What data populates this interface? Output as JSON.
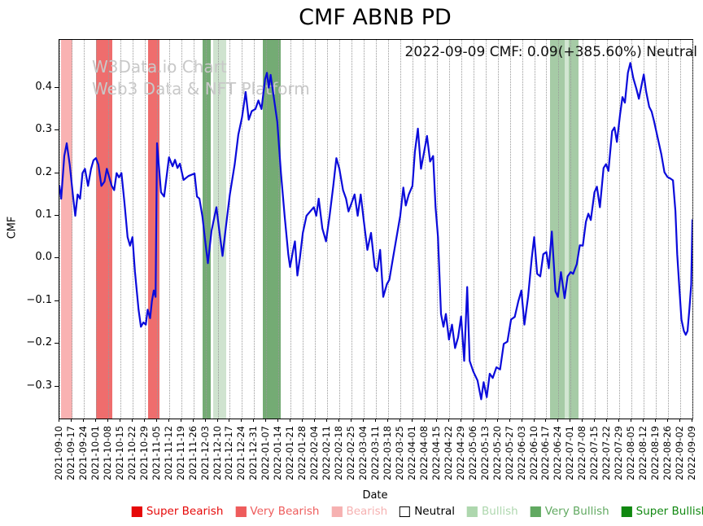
{
  "title": "CMF ABNB PD",
  "annotation": "2022-09-09 CMF: 0.09(+385.60%) Neutral",
  "watermark": {
    "line1": "W3Data.io Chart",
    "line2": "Web3 Data & NFT Platform"
  },
  "legend": [
    {
      "label": "Super Bearish",
      "swatch_color": "#e60909",
      "text_color": "#e60909",
      "swatch_border": "#e60909"
    },
    {
      "label": "Very Bearish",
      "swatch_color": "#ee5c5c",
      "text_color": "#ee5c5c",
      "swatch_border": "#ee5c5c"
    },
    {
      "label": "Bearish",
      "swatch_color": "#f6b1b1",
      "text_color": "#f6b1b1",
      "swatch_border": "#f6b1b1"
    },
    {
      "label": "Neutral",
      "swatch_color": "#ffffff",
      "text_color": "#000000",
      "swatch_border": "#000000"
    },
    {
      "label": "Bullish",
      "swatch_color": "#aed7ae",
      "text_color": "#aed7ae",
      "swatch_border": "#aed7ae"
    },
    {
      "label": "Very Bullish",
      "swatch_color": "#61a961",
      "text_color": "#61a961",
      "swatch_border": "#61a961"
    },
    {
      "label": "Super Bullish",
      "swatch_color": "#108810",
      "text_color": "#108810",
      "swatch_border": "#108810"
    }
  ],
  "chart_data": {
    "type": "line",
    "title": "CMF ABNB PD",
    "xlabel": "Date",
    "ylabel": "CMF",
    "ylim": [
      -0.375,
      0.512
    ],
    "grid": "vertical dotted weekly gridlines, no horizontal grid",
    "legend_position": "bottom",
    "y_ticks": [
      {
        "v": 0.4,
        "label": "0.4"
      },
      {
        "v": 0.3,
        "label": "0.3"
      },
      {
        "v": 0.2,
        "label": "0.2"
      },
      {
        "v": 0.1,
        "label": "0.1"
      },
      {
        "v": 0.0,
        "label": "0.0"
      },
      {
        "v": -0.1,
        "label": "−0.1"
      },
      {
        "v": -0.2,
        "label": "−0.2"
      },
      {
        "v": -0.3,
        "label": "−0.3"
      }
    ],
    "x_tick_labels": [
      "2021-09-10",
      "2021-09-17",
      "2021-09-24",
      "2021-10-01",
      "2021-10-08",
      "2021-10-15",
      "2021-10-22",
      "2021-10-29",
      "2021-11-05",
      "2021-11-12",
      "2021-11-19",
      "2021-11-26",
      "2021-12-03",
      "2021-12-10",
      "2021-12-17",
      "2021-12-24",
      "2021-12-31",
      "2022-01-07",
      "2022-01-14",
      "2022-01-21",
      "2022-01-28",
      "2022-02-04",
      "2022-02-11",
      "2022-02-18",
      "2022-02-25",
      "2022-03-04",
      "2022-03-11",
      "2022-03-18",
      "2022-03-25",
      "2022-04-01",
      "2022-04-08",
      "2022-04-15",
      "2022-04-22",
      "2022-04-29",
      "2022-05-06",
      "2022-05-13",
      "2022-05-20",
      "2022-05-27",
      "2022-06-03",
      "2022-06-10",
      "2022-06-17",
      "2022-06-24",
      "2022-07-01",
      "2022-07-08",
      "2022-07-15",
      "2022-07-22",
      "2022-07-29",
      "2022-08-05",
      "2022-08-12",
      "2022-08-19",
      "2022-08-26",
      "2022-09-02",
      "2022-09-09"
    ],
    "bands": [
      {
        "label": "Bearish",
        "from": 0.15,
        "to": 1.05,
        "color": "#f9b2b2"
      },
      {
        "label": "Very Bearish",
        "from": 3.0,
        "to": 4.35,
        "color": "#ef6d6d"
      },
      {
        "label": "Very Bearish",
        "from": 7.3,
        "to": 8.2,
        "color": "#ef6d6d"
      },
      {
        "label": "Very Bullish",
        "from": 11.75,
        "to": 12.45,
        "color": "#74ab74"
      },
      {
        "label": "Bullish",
        "from": 12.65,
        "to": 13.7,
        "color": "#cfe3cf"
      },
      {
        "label": "Very Bullish",
        "from": 16.7,
        "to": 18.15,
        "color": "#74ab74"
      },
      {
        "label": "Bullish",
        "from": 40.3,
        "to": 41.5,
        "color": "#a6cba6"
      },
      {
        "label": "Bullish",
        "from": 41.5,
        "to": 41.85,
        "color": "#d2e6d2"
      },
      {
        "label": "Bullish",
        "from": 41.85,
        "to": 42.65,
        "color": "#a6cba6"
      }
    ],
    "series": [
      {
        "name": "CMF",
        "color": "#0b0bdb",
        "points": [
          [
            0,
            0.17
          ],
          [
            0.15,
            0.14
          ],
          [
            0.4,
            0.24
          ],
          [
            0.6,
            0.27
          ],
          [
            0.85,
            0.22
          ],
          [
            1.1,
            0.15
          ],
          [
            1.3,
            0.1
          ],
          [
            1.5,
            0.15
          ],
          [
            1.7,
            0.14
          ],
          [
            1.9,
            0.2
          ],
          [
            2.1,
            0.21
          ],
          [
            2.35,
            0.17
          ],
          [
            2.6,
            0.21
          ],
          [
            2.8,
            0.23
          ],
          [
            3.0,
            0.235
          ],
          [
            3.2,
            0.22
          ],
          [
            3.45,
            0.17
          ],
          [
            3.7,
            0.18
          ],
          [
            3.9,
            0.21
          ],
          [
            4.1,
            0.19
          ],
          [
            4.3,
            0.17
          ],
          [
            4.5,
            0.16
          ],
          [
            4.7,
            0.2
          ],
          [
            4.9,
            0.19
          ],
          [
            5.1,
            0.2
          ],
          [
            5.35,
            0.13
          ],
          [
            5.6,
            0.05
          ],
          [
            5.8,
            0.03
          ],
          [
            6.0,
            0.05
          ],
          [
            6.2,
            -0.03
          ],
          [
            6.5,
            -0.12
          ],
          [
            6.7,
            -0.16
          ],
          [
            6.9,
            -0.15
          ],
          [
            7.1,
            -0.155
          ],
          [
            7.25,
            -0.12
          ],
          [
            7.45,
            -0.14
          ],
          [
            7.6,
            -0.1
          ],
          [
            7.75,
            -0.075
          ],
          [
            7.9,
            -0.09
          ],
          [
            8.02,
            0.27
          ],
          [
            8.35,
            0.155
          ],
          [
            8.6,
            0.145
          ],
          [
            9.0,
            0.237
          ],
          [
            9.3,
            0.216
          ],
          [
            9.5,
            0.231
          ],
          [
            9.7,
            0.212
          ],
          [
            9.9,
            0.222
          ],
          [
            10.2,
            0.184
          ],
          [
            10.6,
            0.193
          ],
          [
            11.1,
            0.199
          ],
          [
            11.3,
            0.145
          ],
          [
            11.5,
            0.14
          ],
          [
            11.75,
            0.098
          ],
          [
            12.0,
            0.036
          ],
          [
            12.2,
            -0.011
          ],
          [
            12.5,
            0.065
          ],
          [
            12.9,
            0.12
          ],
          [
            13.1,
            0.073
          ],
          [
            13.4,
            0.006
          ],
          [
            13.7,
            0.08
          ],
          [
            14.0,
            0.15
          ],
          [
            14.4,
            0.22
          ],
          [
            14.7,
            0.29
          ],
          [
            15.0,
            0.33
          ],
          [
            15.3,
            0.39
          ],
          [
            15.55,
            0.325
          ],
          [
            15.8,
            0.345
          ],
          [
            16.1,
            0.35
          ],
          [
            16.35,
            0.37
          ],
          [
            16.6,
            0.35
          ],
          [
            16.9,
            0.42
          ],
          [
            17.05,
            0.435
          ],
          [
            17.2,
            0.4
          ],
          [
            17.35,
            0.43
          ],
          [
            17.6,
            0.38
          ],
          [
            17.9,
            0.32
          ],
          [
            18.2,
            0.2
          ],
          [
            18.5,
            0.1
          ],
          [
            18.8,
            0.01
          ],
          [
            18.95,
            -0.02
          ],
          [
            19.2,
            0.02
          ],
          [
            19.35,
            0.04
          ],
          [
            19.55,
            -0.04
          ],
          [
            19.75,
            0.0
          ],
          [
            20.0,
            0.06
          ],
          [
            20.3,
            0.1
          ],
          [
            20.6,
            0.11
          ],
          [
            20.9,
            0.12
          ],
          [
            21.1,
            0.1
          ],
          [
            21.3,
            0.14
          ],
          [
            21.6,
            0.07
          ],
          [
            21.9,
            0.04
          ],
          [
            22.2,
            0.1
          ],
          [
            22.5,
            0.17
          ],
          [
            22.75,
            0.235
          ],
          [
            23.0,
            0.21
          ],
          [
            23.3,
            0.16
          ],
          [
            23.55,
            0.14
          ],
          [
            23.75,
            0.11
          ],
          [
            24.0,
            0.13
          ],
          [
            24.25,
            0.15
          ],
          [
            24.5,
            0.1
          ],
          [
            24.75,
            0.15
          ],
          [
            25.0,
            0.09
          ],
          [
            25.3,
            0.02
          ],
          [
            25.6,
            0.06
          ],
          [
            25.9,
            -0.02
          ],
          [
            26.1,
            -0.03
          ],
          [
            26.35,
            0.02
          ],
          [
            26.6,
            -0.09
          ],
          [
            26.9,
            -0.06
          ],
          [
            27.1,
            -0.05
          ],
          [
            27.4,
            0.0
          ],
          [
            27.7,
            0.05
          ],
          [
            28.0,
            0.1
          ],
          [
            28.25,
            0.166
          ],
          [
            28.45,
            0.124
          ],
          [
            28.7,
            0.15
          ],
          [
            29.0,
            0.17
          ],
          [
            29.2,
            0.25
          ],
          [
            29.45,
            0.304
          ],
          [
            29.7,
            0.21
          ],
          [
            29.9,
            0.24
          ],
          [
            30.2,
            0.287
          ],
          [
            30.45,
            0.227
          ],
          [
            30.7,
            0.24
          ],
          [
            30.9,
            0.12
          ],
          [
            31.1,
            0.05
          ],
          [
            31.35,
            -0.13
          ],
          [
            31.55,
            -0.16
          ],
          [
            31.75,
            -0.13
          ],
          [
            32.0,
            -0.19
          ],
          [
            32.25,
            -0.155
          ],
          [
            32.5,
            -0.21
          ],
          [
            32.75,
            -0.185
          ],
          [
            33.0,
            -0.136
          ],
          [
            33.25,
            -0.24
          ],
          [
            33.5,
            -0.067
          ],
          [
            33.7,
            -0.24
          ],
          [
            34.0,
            -0.265
          ],
          [
            34.35,
            -0.286
          ],
          [
            34.65,
            -0.33
          ],
          [
            34.85,
            -0.29
          ],
          [
            35.1,
            -0.325
          ],
          [
            35.35,
            -0.27
          ],
          [
            35.6,
            -0.28
          ],
          [
            35.9,
            -0.255
          ],
          [
            36.2,
            -0.26
          ],
          [
            36.5,
            -0.2
          ],
          [
            36.8,
            -0.195
          ],
          [
            37.1,
            -0.143
          ],
          [
            37.4,
            -0.137
          ],
          [
            37.7,
            -0.1
          ],
          [
            37.95,
            -0.075
          ],
          [
            38.2,
            -0.155
          ],
          [
            38.5,
            -0.09
          ],
          [
            38.8,
            0.0
          ],
          [
            39.0,
            0.05
          ],
          [
            39.25,
            -0.036
          ],
          [
            39.5,
            -0.042
          ],
          [
            39.75,
            0.01
          ],
          [
            40.0,
            0.015
          ],
          [
            40.2,
            -0.023
          ],
          [
            40.45,
            0.063
          ],
          [
            40.75,
            -0.077
          ],
          [
            40.95,
            -0.09
          ],
          [
            41.2,
            -0.032
          ],
          [
            41.5,
            -0.093
          ],
          [
            41.75,
            -0.042
          ],
          [
            42.0,
            -0.032
          ],
          [
            42.2,
            -0.036
          ],
          [
            42.5,
            -0.013
          ],
          [
            42.75,
            0.031
          ],
          [
            43.0,
            0.03
          ],
          [
            43.25,
            0.086
          ],
          [
            43.45,
            0.105
          ],
          [
            43.65,
            0.09
          ],
          [
            43.95,
            0.155
          ],
          [
            44.15,
            0.168
          ],
          [
            44.4,
            0.12
          ],
          [
            44.7,
            0.212
          ],
          [
            44.9,
            0.221
          ],
          [
            45.1,
            0.205
          ],
          [
            45.4,
            0.298
          ],
          [
            45.6,
            0.307
          ],
          [
            45.8,
            0.273
          ],
          [
            46.05,
            0.336
          ],
          [
            46.25,
            0.378
          ],
          [
            46.45,
            0.365
          ],
          [
            46.7,
            0.435
          ],
          [
            46.9,
            0.458
          ],
          [
            47.15,
            0.422
          ],
          [
            47.4,
            0.397
          ],
          [
            47.6,
            0.374
          ],
          [
            47.8,
            0.403
          ],
          [
            48.0,
            0.431
          ],
          [
            48.2,
            0.391
          ],
          [
            48.45,
            0.355
          ],
          [
            48.65,
            0.344
          ],
          [
            48.85,
            0.321
          ],
          [
            49.15,
            0.282
          ],
          [
            49.45,
            0.244
          ],
          [
            49.7,
            0.202
          ],
          [
            49.95,
            0.191
          ],
          [
            50.2,
            0.187
          ],
          [
            50.4,
            0.183
          ],
          [
            50.6,
            0.111
          ],
          [
            50.75,
            0.01
          ],
          [
            50.95,
            -0.08
          ],
          [
            51.1,
            -0.143
          ],
          [
            51.3,
            -0.17
          ],
          [
            51.45,
            -0.179
          ],
          [
            51.6,
            -0.17
          ],
          [
            51.75,
            -0.118
          ],
          [
            51.9,
            -0.061
          ],
          [
            52,
            0.09
          ]
        ]
      }
    ]
  }
}
